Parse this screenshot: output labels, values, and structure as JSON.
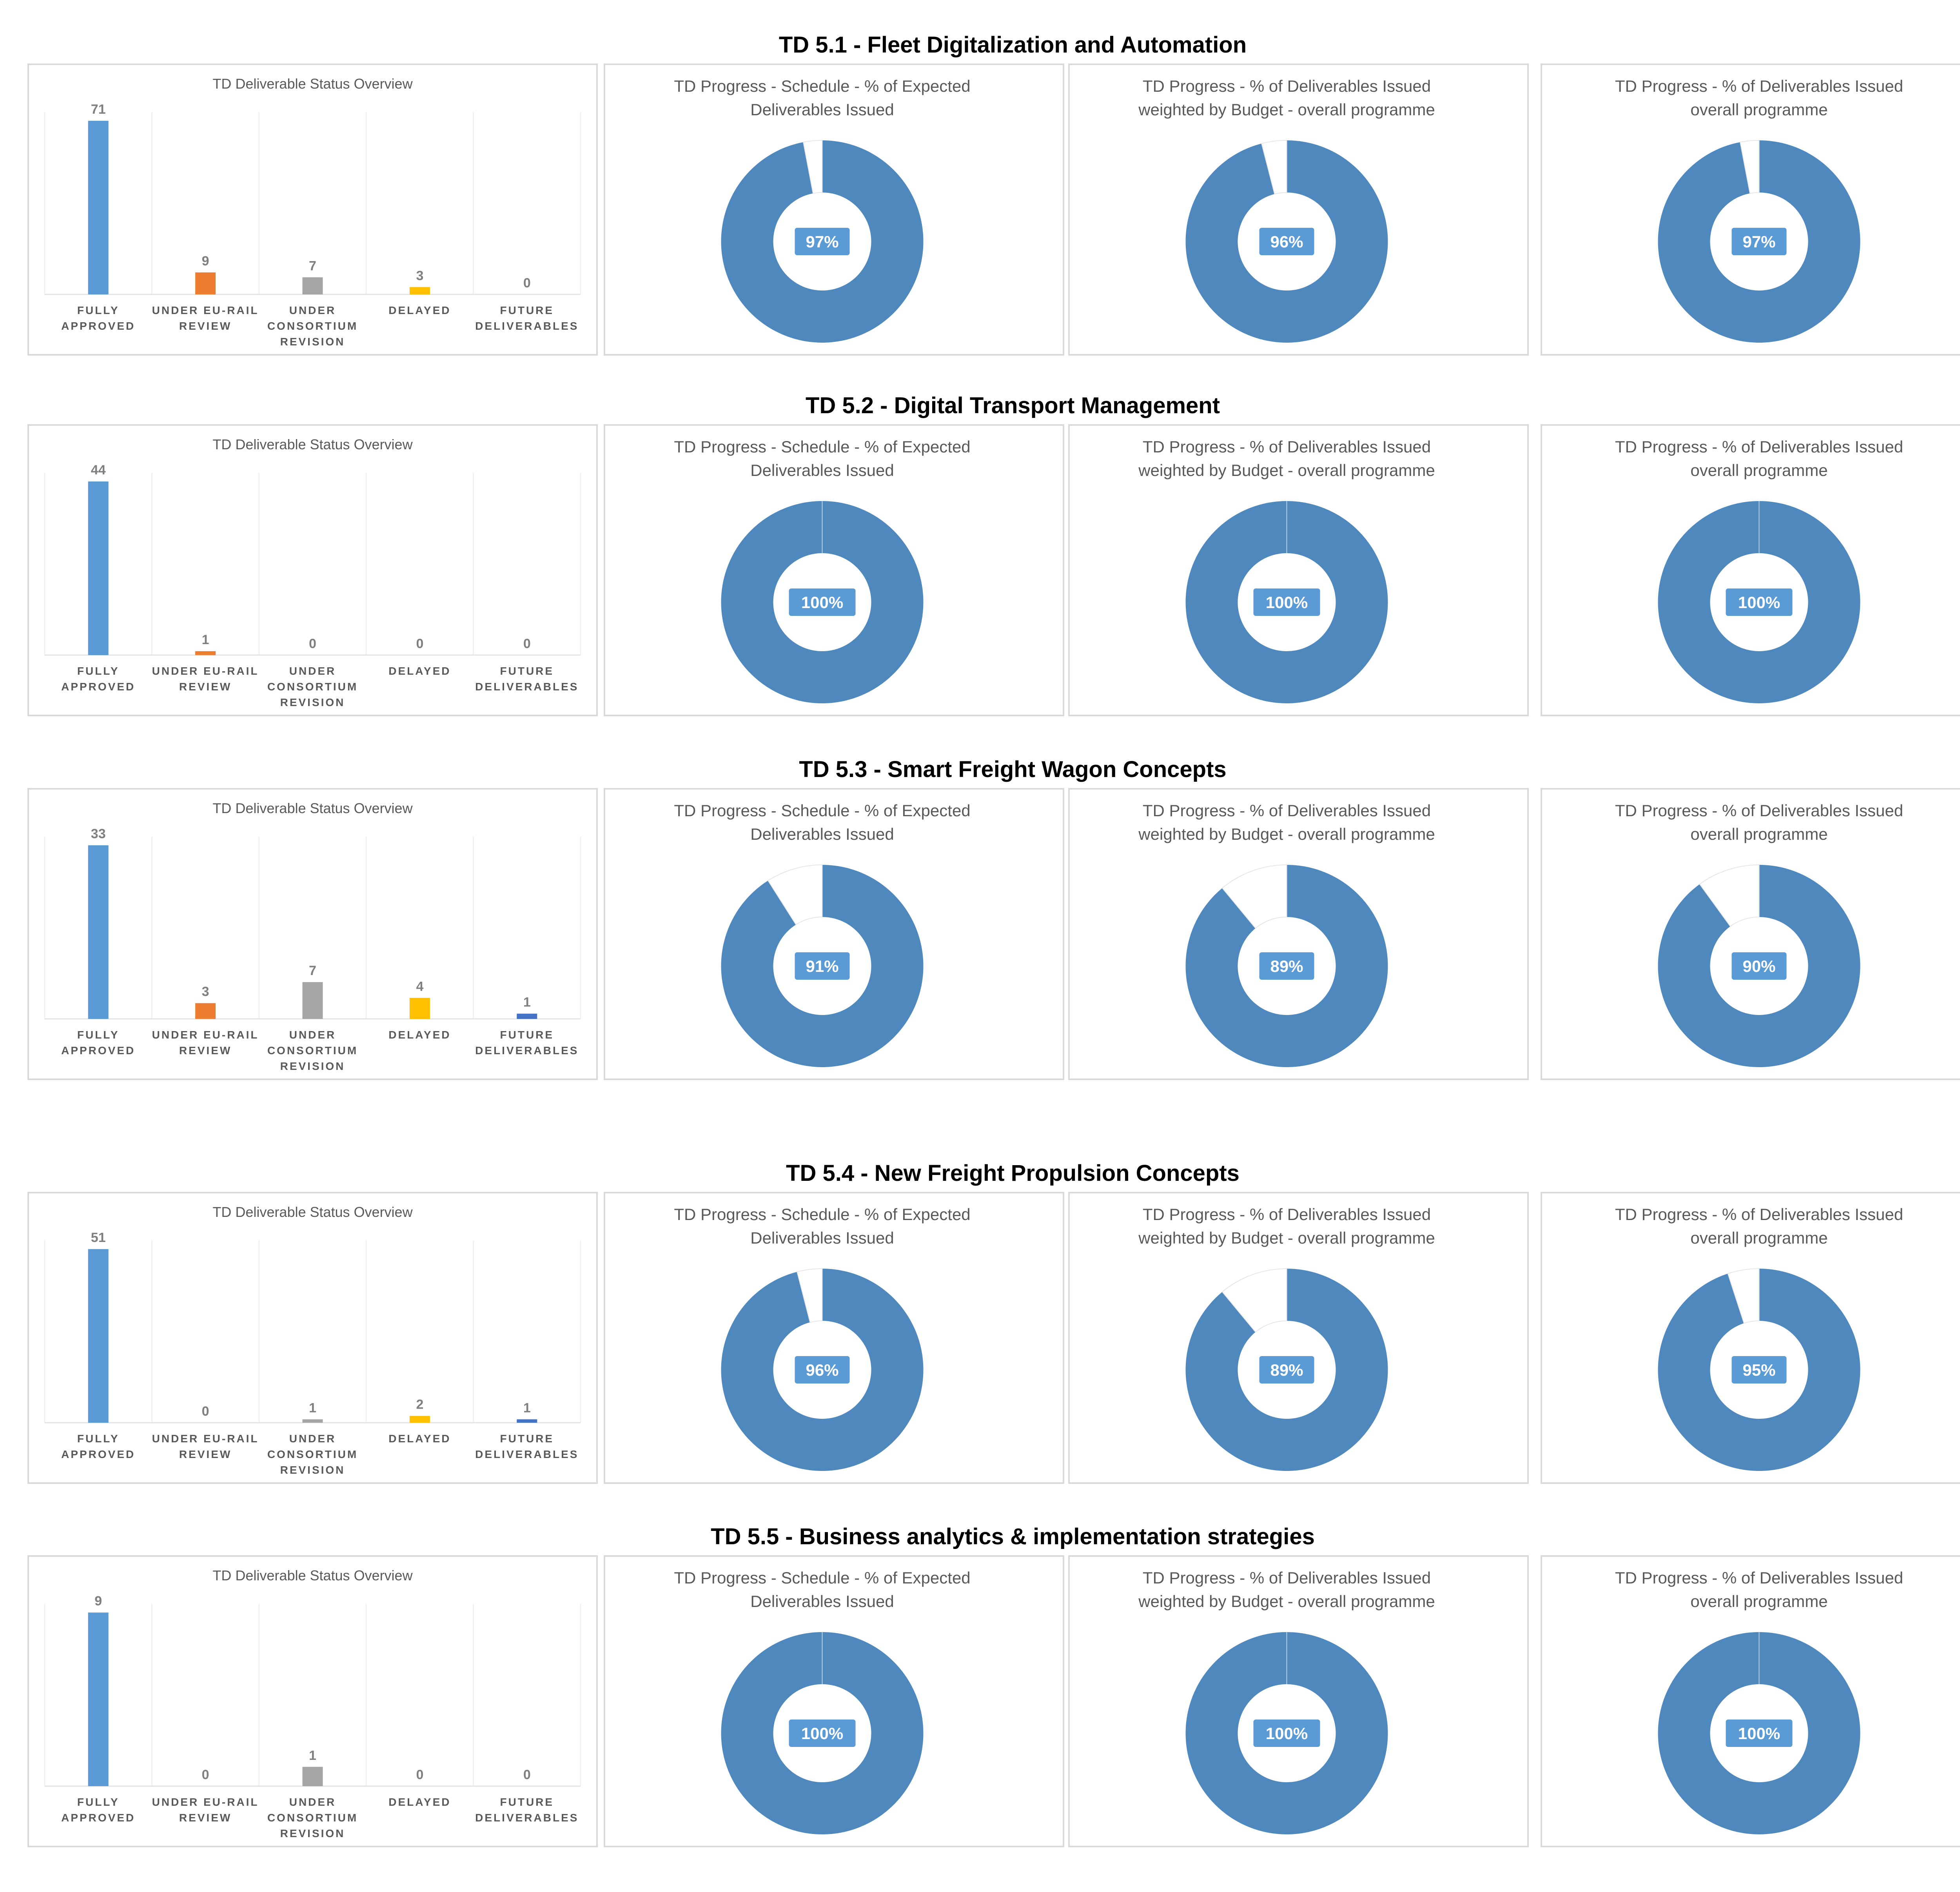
{
  "colors": {
    "fully_approved": "#5b9bd5",
    "under_eurail_review": "#ed7d31",
    "under_consortium_revision": "#a5a5a5",
    "delayed": "#ffc000",
    "future_deliverables": "#4472c4",
    "donut_fill": "#4f88bd",
    "donut_label_bg": "#5b9bd5",
    "grid": "#f0f0f0"
  },
  "sections": [
    {
      "title": "TD 5.1 - Fleet Digitalization and Automation",
      "status_chart": {
        "title": "TD Deliverable Status Overview",
        "categories": [
          [
            "FULLY",
            "APPROVED"
          ],
          [
            "UNDER EU-RAIL",
            "REVIEW"
          ],
          [
            "UNDER",
            "CONSORTIUM",
            "REVISION"
          ],
          [
            "DELAYED"
          ],
          [
            "FUTURE",
            "DELIVERABLES"
          ]
        ],
        "values": [
          71,
          9,
          7,
          3,
          0
        ]
      },
      "donuts": [
        {
          "title": [
            "TD Progress -  Schedule - % of Expected",
            "Deliverables Issued"
          ],
          "percent": 97,
          "label": "97%"
        },
        {
          "title": [
            "TD Progress - % of Deliverables Issued",
            "weighted by Budget  - overall programme"
          ],
          "percent": 96,
          "label": "96%"
        },
        {
          "title": [
            "TD Progress - % of Deliverables Issued",
            "overall programme"
          ],
          "percent": 97,
          "label": "97%"
        }
      ]
    },
    {
      "title": "TD 5.2 - Digital Transport Management",
      "status_chart": {
        "title": "TD Deliverable Status Overview",
        "categories": [
          [
            "FULLY",
            "APPROVED"
          ],
          [
            "UNDER EU-RAIL",
            "REVIEW"
          ],
          [
            "UNDER",
            "CONSORTIUM",
            "REVISION"
          ],
          [
            "DELAYED"
          ],
          [
            "FUTURE",
            "DELIVERABLES"
          ]
        ],
        "values": [
          44,
          1,
          0,
          0,
          0
        ]
      },
      "donuts": [
        {
          "title": [
            "TD Progress -  Schedule - % of Expected",
            "Deliverables Issued"
          ],
          "percent": 100,
          "label": "100%"
        },
        {
          "title": [
            "TD Progress - % of Deliverables Issued",
            "weighted by Budget  - overall programme"
          ],
          "percent": 100,
          "label": "100%"
        },
        {
          "title": [
            "TD Progress - % of Deliverables Issued",
            "overall programme"
          ],
          "percent": 100,
          "label": "100%"
        }
      ]
    },
    {
      "title": "TD 5.3 - Smart Freight Wagon Concepts",
      "status_chart": {
        "title": "TD Deliverable Status Overview",
        "categories": [
          [
            "FULLY",
            "APPROVED"
          ],
          [
            "UNDER EU-RAIL",
            "REVIEW"
          ],
          [
            "UNDER",
            "CONSORTIUM",
            "REVISION"
          ],
          [
            "DELAYED"
          ],
          [
            "FUTURE",
            "DELIVERABLES"
          ]
        ],
        "values": [
          33,
          3,
          7,
          4,
          1
        ]
      },
      "donuts": [
        {
          "title": [
            "TD Progress -  Schedule - % of Expected",
            "Deliverables Issued"
          ],
          "percent": 91,
          "label": "91%"
        },
        {
          "title": [
            "TD Progress - % of Deliverables Issued",
            "weighted by Budget  - overall programme"
          ],
          "percent": 89,
          "label": "89%"
        },
        {
          "title": [
            "TD Progress - % of Deliverables Issued",
            "overall programme"
          ],
          "percent": 90,
          "label": "90%"
        }
      ]
    },
    {
      "title": "TD 5.4 - New Freight Propulsion Concepts",
      "status_chart": {
        "title": "TD Deliverable Status Overview",
        "categories": [
          [
            "FULLY",
            "APPROVED"
          ],
          [
            "UNDER EU-RAIL",
            "REVIEW"
          ],
          [
            "UNDER",
            "CONSORTIUM",
            "REVISION"
          ],
          [
            "DELAYED"
          ],
          [
            "FUTURE",
            "DELIVERABLES"
          ]
        ],
        "values": [
          51,
          0,
          1,
          2,
          1
        ]
      },
      "donuts": [
        {
          "title": [
            "TD Progress -  Schedule - % of Expected",
            "Deliverables Issued"
          ],
          "percent": 96,
          "label": "96%"
        },
        {
          "title": [
            "TD Progress - % of Deliverables Issued",
            "weighted by Budget  - overall programme"
          ],
          "percent": 89,
          "label": "89%"
        },
        {
          "title": [
            "TD Progress - % of Deliverables Issued",
            "overall programme"
          ],
          "percent": 95,
          "label": "95%"
        }
      ]
    },
    {
      "title": "TD 5.5 - Business analytics & implementation strategies",
      "status_chart": {
        "title": "TD Deliverable Status Overview",
        "categories": [
          [
            "FULLY",
            "APPROVED"
          ],
          [
            "UNDER EU-RAIL",
            "REVIEW"
          ],
          [
            "UNDER",
            "CONSORTIUM",
            "REVISION"
          ],
          [
            "DELAYED"
          ],
          [
            "FUTURE",
            "DELIVERABLES"
          ]
        ],
        "values": [
          9,
          0,
          1,
          0,
          0
        ]
      },
      "donuts": [
        {
          "title": [
            "TD Progress -  Schedule - % of Expected",
            "Deliverables Issued"
          ],
          "percent": 100,
          "label": "100%"
        },
        {
          "title": [
            "TD Progress - % of Deliverables Issued",
            "weighted by Budget  - overall programme"
          ],
          "percent": 100,
          "label": "100%"
        },
        {
          "title": [
            "TD Progress - % of Deliverables Issued",
            "overall programme"
          ],
          "percent": 100,
          "label": "100%"
        }
      ]
    }
  ],
  "chart_data": [
    {
      "type": "bar",
      "title": "TD Deliverable Status Overview",
      "categories": [
        "FULLY APPROVED",
        "UNDER EU-RAIL REVIEW",
        "UNDER CONSORTIUM REVISION",
        "DELAYED",
        "FUTURE DELIVERABLES"
      ],
      "values": [
        71,
        9,
        7,
        3,
        0
      ]
    },
    {
      "type": "pie",
      "title": "TD Progress -  Schedule - % of Expected Deliverables Issued",
      "values": [
        97,
        3
      ]
    },
    {
      "type": "pie",
      "title": "TD Progress - % of Deliverables Issued weighted by Budget  - overall programme",
      "values": [
        96,
        4
      ]
    },
    {
      "type": "pie",
      "title": "TD Progress - % of Deliverables Issued overall programme",
      "values": [
        97,
        3
      ]
    },
    {
      "type": "bar",
      "title": "TD Deliverable Status Overview",
      "categories": [
        "FULLY APPROVED",
        "UNDER EU-RAIL REVIEW",
        "UNDER CONSORTIUM REVISION",
        "DELAYED",
        "FUTURE DELIVERABLES"
      ],
      "values": [
        44,
        1,
        0,
        0,
        0
      ]
    },
    {
      "type": "pie",
      "title": "TD Progress -  Schedule - % of Expected Deliverables Issued",
      "values": [
        100,
        0
      ]
    },
    {
      "type": "pie",
      "title": "TD Progress - % of Deliverables Issued weighted by Budget  - overall programme",
      "values": [
        100,
        0
      ]
    },
    {
      "type": "pie",
      "title": "TD Progress - % of Deliverables Issued overall programme",
      "values": [
        100,
        0
      ]
    },
    {
      "type": "bar",
      "title": "TD Deliverable Status Overview",
      "categories": [
        "FULLY APPROVED",
        "UNDER EU-RAIL REVIEW",
        "UNDER CONSORTIUM REVISION",
        "DELAYED",
        "FUTURE DELIVERABLES"
      ],
      "values": [
        33,
        3,
        7,
        4,
        1
      ]
    },
    {
      "type": "pie",
      "title": "TD Progress -  Schedule - % of Expected Deliverables Issued",
      "values": [
        91,
        9
      ]
    },
    {
      "type": "pie",
      "title": "TD Progress - % of Deliverables Issued weighted by Budget  - overall programme",
      "values": [
        89,
        11
      ]
    },
    {
      "type": "pie",
      "title": "TD Progress - % of Deliverables Issued overall programme",
      "values": [
        90,
        10
      ]
    },
    {
      "type": "bar",
      "title": "TD Deliverable Status Overview",
      "categories": [
        "FULLY APPROVED",
        "UNDER EU-RAIL REVIEW",
        "UNDER CONSORTIUM REVISION",
        "DELAYED",
        "FUTURE DELIVERABLES"
      ],
      "values": [
        51,
        0,
        1,
        2,
        1
      ]
    },
    {
      "type": "pie",
      "title": "TD Progress -  Schedule - % of Expected Deliverables Issued",
      "values": [
        96,
        4
      ]
    },
    {
      "type": "pie",
      "title": "TD Progress - % of Deliverables Issued weighted by Budget  - overall programme",
      "values": [
        89,
        11
      ]
    },
    {
      "type": "pie",
      "title": "TD Progress - % of Deliverables Issued overall programme",
      "values": [
        95,
        5
      ]
    },
    {
      "type": "bar",
      "title": "TD Deliverable Status Overview",
      "categories": [
        "FULLY APPROVED",
        "UNDER EU-RAIL REVIEW",
        "UNDER CONSORTIUM REVISION",
        "DELAYED",
        "FUTURE DELIVERABLES"
      ],
      "values": [
        9,
        0,
        1,
        0,
        0
      ]
    },
    {
      "type": "pie",
      "title": "TD Progress -  Schedule - % of Expected Deliverables Issued",
      "values": [
        100,
        0
      ]
    },
    {
      "type": "pie",
      "title": "TD Progress - % of Deliverables Issued weighted by Budget  - overall programme",
      "values": [
        100,
        0
      ]
    },
    {
      "type": "pie",
      "title": "TD Progress - % of Deliverables Issued overall programme",
      "values": [
        100,
        0
      ]
    }
  ]
}
